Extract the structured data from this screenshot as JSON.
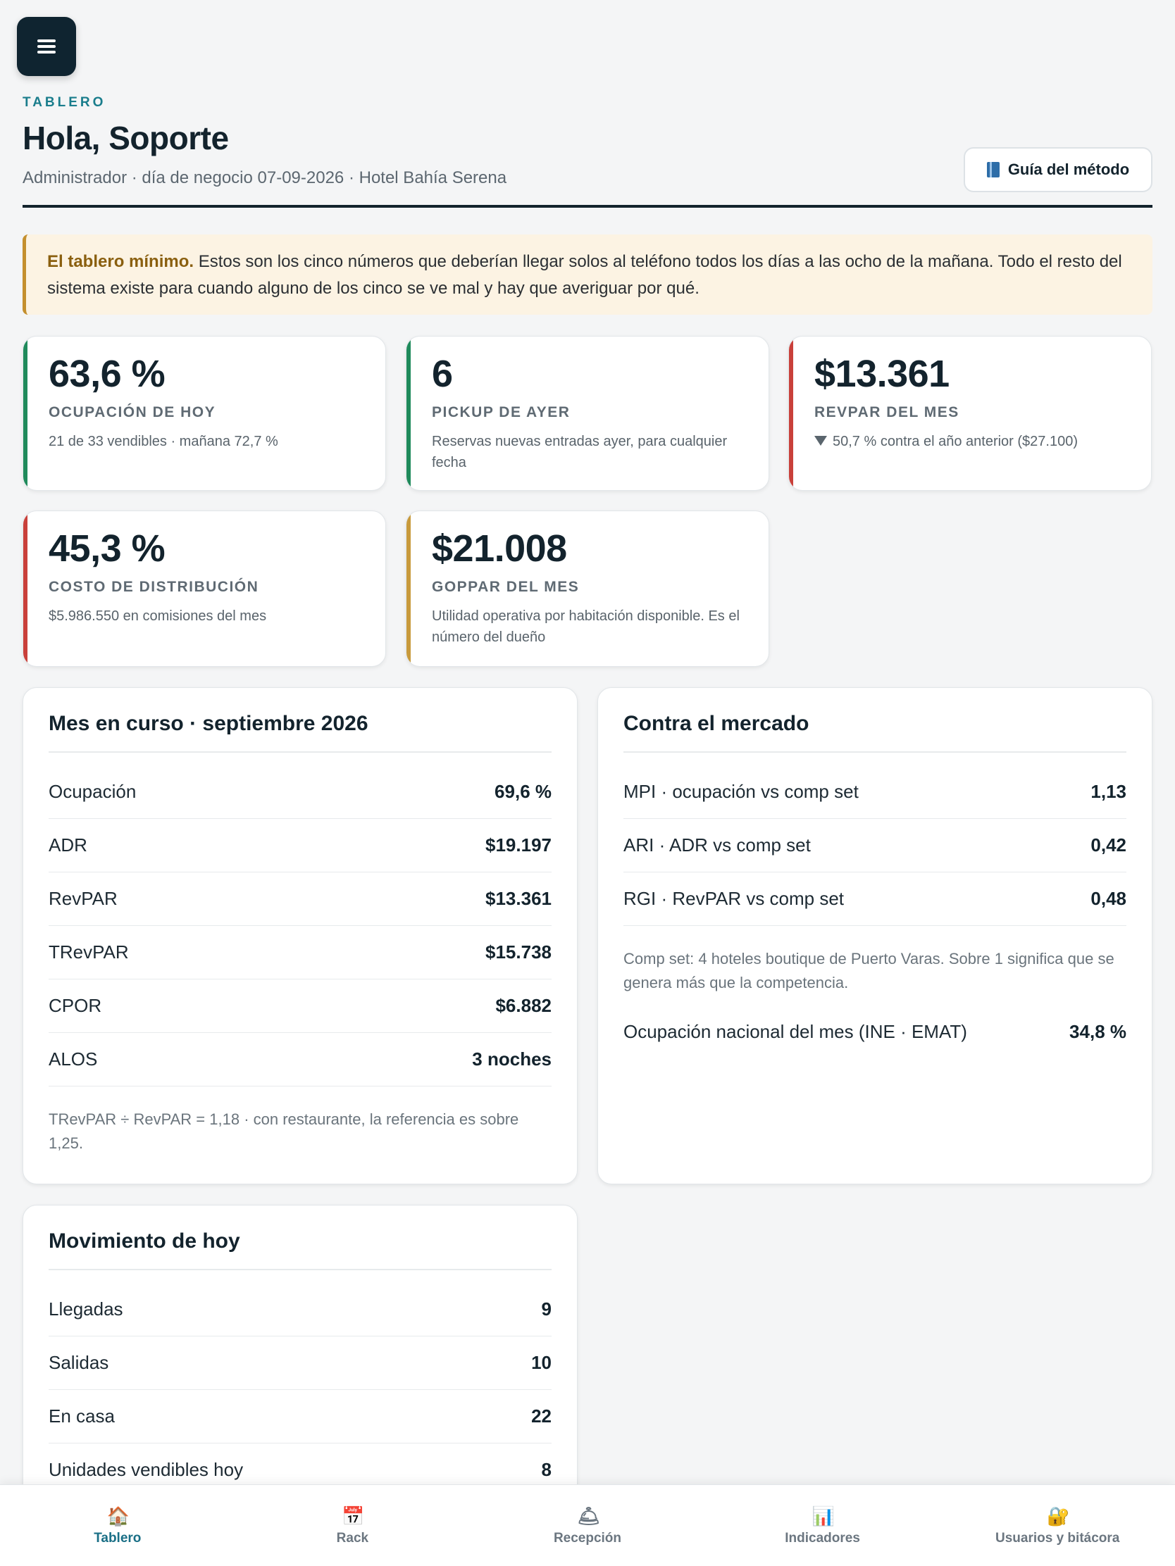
{
  "menu": {
    "icon": "hamburger-menu-icon"
  },
  "header": {
    "eyebrow": "TABLERO",
    "greeting": "Hola, Soporte",
    "subtitle": "Administrador · día de negocio 07-09-2026 · Hotel Bahía Serena",
    "guide_button": "Guía del método",
    "guide_icon": "book-icon"
  },
  "notice": {
    "bold": "El tablero mínimo.",
    "text": " Estos son los cinco números que deberían llegar solos al teléfono todos los días a las ocho de la mañana. Todo el resto del sistema existe para cuando alguno de los cinco se ve mal y hay que averiguar por qué."
  },
  "kpis": [
    {
      "value": "63,6 %",
      "label": "OCUPACIÓN DE HOY",
      "desc": "21 de 33 vendibles · mañana 72,7 %",
      "status": "green"
    },
    {
      "value": "6",
      "label": "PICKUP DE AYER",
      "desc": "Reservas nuevas entradas ayer, para cualquier fecha",
      "status": "green"
    },
    {
      "value": "$13.361",
      "label": "REVPAR DEL MES",
      "desc": "50,7 % contra el año anterior ($27.100)",
      "status": "red",
      "trend": "down"
    },
    {
      "value": "45,3 %",
      "label": "COSTO DE DISTRIBUCIÓN",
      "desc": "$5.986.550 en comisiones del mes",
      "status": "red"
    },
    {
      "value": "$21.008",
      "label": "GOPPAR DEL MES",
      "desc": "Utilidad operativa por habitación disponible. Es el número del dueño",
      "status": "gold"
    }
  ],
  "month": {
    "title": "Mes en curso · septiembre 2026",
    "rows": [
      {
        "label": "Ocupación",
        "value": "69,6 %"
      },
      {
        "label": "ADR",
        "value": "$19.197"
      },
      {
        "label": "RevPAR",
        "value": "$13.361"
      },
      {
        "label": "TRevPAR",
        "value": "$15.738"
      },
      {
        "label": "CPOR",
        "value": "$6.882"
      },
      {
        "label": "ALOS",
        "value": "3 noches"
      }
    ],
    "note": "TRevPAR ÷ RevPAR = 1,18 · con restaurante, la referencia es sobre 1,25."
  },
  "market": {
    "title": "Contra el mercado",
    "rows": [
      {
        "label": "MPI · ocupación vs comp set",
        "value": "1,13"
      },
      {
        "label": "ARI · ADR vs comp set",
        "value": "0,42"
      },
      {
        "label": "RGI · RevPAR vs comp set",
        "value": "0,48"
      }
    ],
    "note": "Comp set: 4 hoteles boutique de Puerto Varas. Sobre 1 significa que se genera más que la competencia.",
    "national_label": "Ocupación nacional del mes (INE · EMAT)",
    "national_value": "34,8 %"
  },
  "today": {
    "title": "Movimiento de hoy",
    "rows": [
      {
        "label": "Llegadas",
        "value": "9"
      },
      {
        "label": "Salidas",
        "value": "10"
      },
      {
        "label": "En casa",
        "value": "22"
      },
      {
        "label": "Unidades vendibles hoy",
        "value": "8"
      }
    ]
  },
  "nav": [
    {
      "label": "Tablero",
      "icon": "house-icon",
      "active": true
    },
    {
      "label": "Rack",
      "icon": "calendar-icon",
      "active": false
    },
    {
      "label": "Recepción",
      "icon": "bell-icon",
      "active": false
    },
    {
      "label": "Indicadores",
      "icon": "bar-chart-icon",
      "active": false
    },
    {
      "label": "Usuarios y bitácora",
      "icon": "lock-icon",
      "active": false
    }
  ]
}
